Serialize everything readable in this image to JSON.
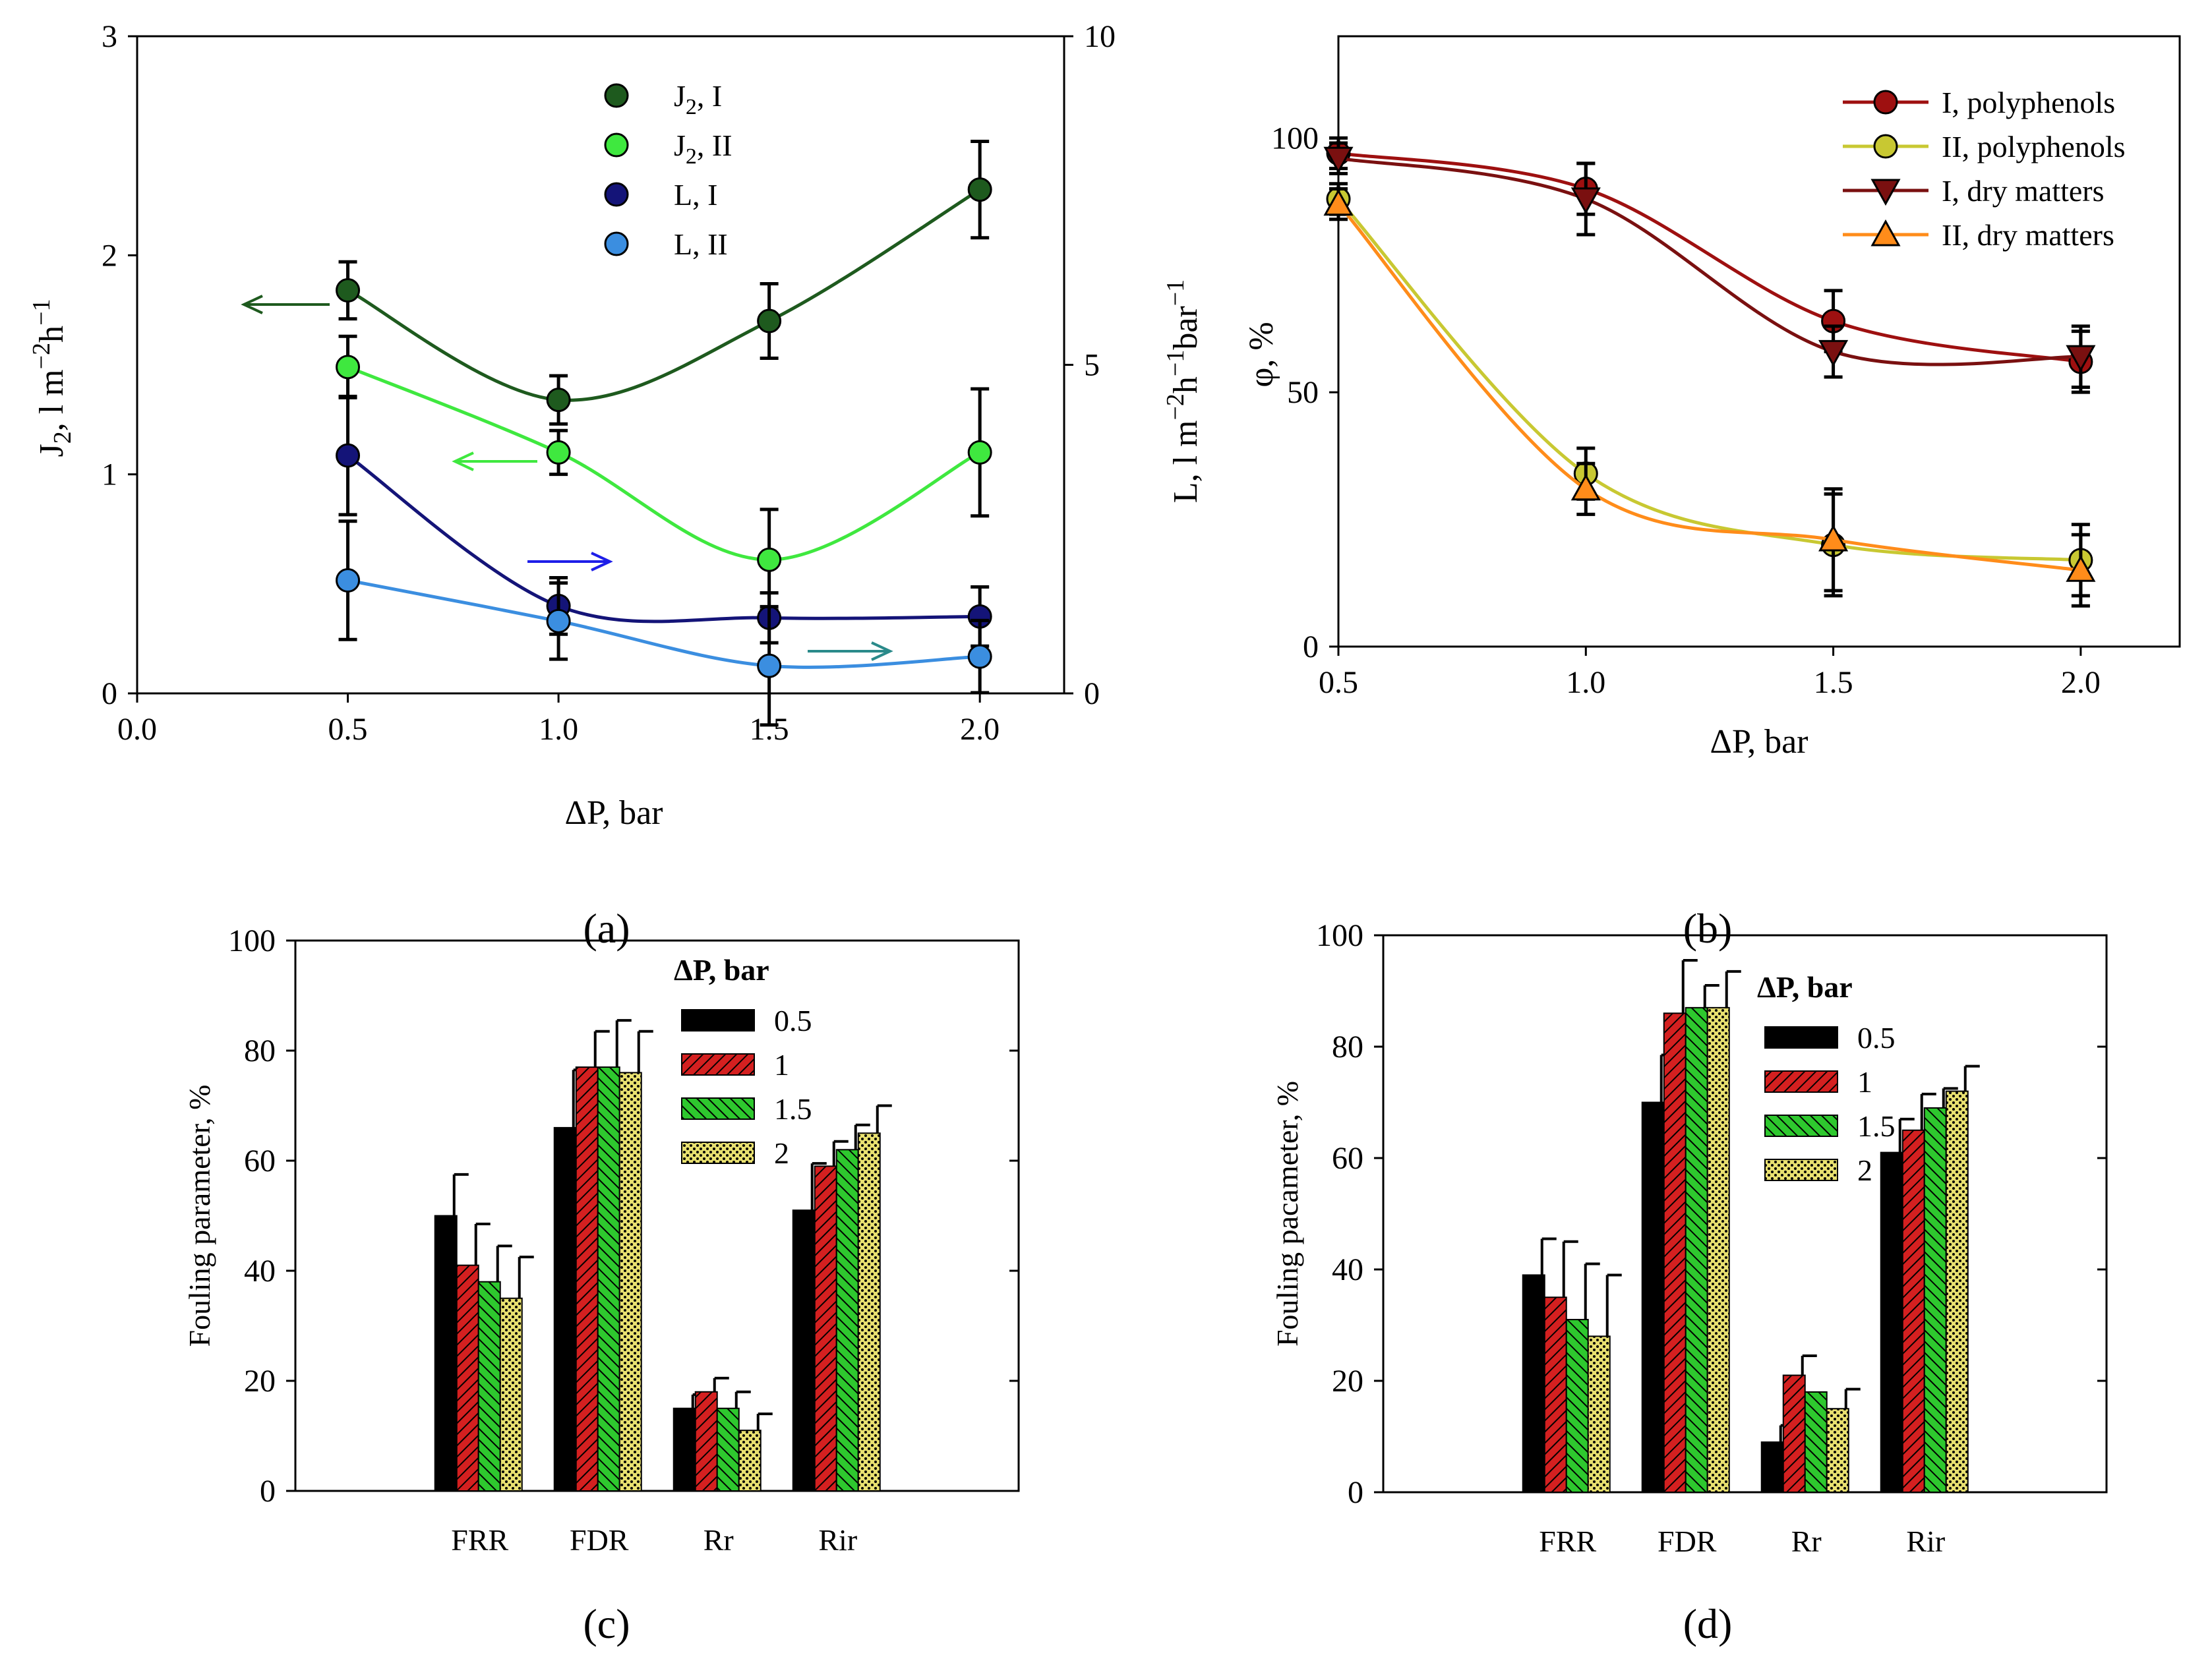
{
  "colors": {
    "J_I": "#1e5a1e",
    "J_II": "#3fe83f",
    "L_I": "#141478",
    "L_II": "#3b8ee0",
    "poly_I": "#9e1010",
    "poly_II": "#c8c832",
    "dry_I": "#7a1010",
    "dry_II": "#ff8c1a",
    "bar_05": "#000000",
    "bar_1": "#d42020",
    "bar_15": "#2ec82e",
    "bar_2": "#e8e070"
  },
  "chart_data": [
    {
      "id": "a",
      "type": "line",
      "caption_letter": "a",
      "xlabel": "ΔP, bar",
      "xlim": [
        0,
        2.2
      ],
      "xticks": [
        "0.0",
        "0.5",
        "1.0",
        "1.5",
        "2.0"
      ],
      "ylabel_left": {
        "base": "J",
        "sub": "2",
        "rest": ", l m",
        "sup1": "−2",
        "mid": "h",
        "sup2": "−1"
      },
      "ylabel_right": {
        "base": "L, l m",
        "sup1": "−2",
        "mid": "h",
        "sup2": "−1",
        "tail": "bar",
        "sup3": "−1"
      },
      "ylim_left": [
        0,
        3
      ],
      "yticks_left": [
        "0",
        "1",
        "2",
        "3"
      ],
      "ylim_right": [
        0,
        10
      ],
      "yticks_right": [
        "0",
        "5",
        "10"
      ],
      "x": [
        0.5,
        1.0,
        1.5,
        2.0
      ],
      "series": [
        {
          "name": "J2, I",
          "label_base": "J",
          "label_sub": "2",
          "label_rest": ", I",
          "axis": "left",
          "values": [
            1.84,
            1.34,
            1.7,
            2.3
          ],
          "err": [
            0.13,
            0.11,
            0.17,
            0.22
          ],
          "color_key": "J_I"
        },
        {
          "name": "J2, II",
          "label_base": "J",
          "label_sub": "2",
          "label_rest": ", II",
          "axis": "left",
          "values": [
            1.49,
            1.1,
            0.61,
            1.1
          ],
          "err": [
            0.14,
            0.1,
            0.23,
            0.29
          ],
          "color_key": "J_II"
        },
        {
          "name": "L, I",
          "label_base": "L, I",
          "label_sub": "",
          "label_rest": "",
          "axis": "right",
          "values": [
            3.62,
            1.33,
            1.15,
            1.17
          ],
          "err": [
            0.9,
            0.43,
            0.38,
            0.45
          ],
          "color_key": "L_I"
        },
        {
          "name": "L, II",
          "label_base": "L, II",
          "label_sub": "",
          "label_rest": "",
          "axis": "right",
          "values": [
            1.72,
            1.1,
            0.42,
            0.56
          ],
          "err": [
            0.9,
            0.58,
            0.9,
            0.55
          ],
          "color_key": "L_II"
        }
      ]
    },
    {
      "id": "b",
      "type": "line",
      "caption_letter": "b",
      "xlabel": "ΔP, bar",
      "ylabel": "φ, %",
      "xlim": [
        0.5,
        2.2
      ],
      "xticks": [
        "0.5",
        "1.0",
        "1.5",
        "2.0"
      ],
      "ylim": [
        0,
        120
      ],
      "yticks": [
        "0",
        "50",
        "100"
      ],
      "x": [
        0.5,
        1.0,
        1.5,
        2.0
      ],
      "series": [
        {
          "name": "I, polyphenols",
          "marker": "circle",
          "values": [
            97,
            90,
            64,
            56
          ],
          "err": [
            3,
            5,
            6,
            6
          ],
          "color_key": "poly_I"
        },
        {
          "name": "II, polyphenols",
          "marker": "circle",
          "values": [
            88,
            34,
            20,
            17
          ],
          "err": [
            3,
            5,
            10,
            7
          ],
          "color_key": "poly_II"
        },
        {
          "name": "I, dry matters",
          "marker": "tri-down",
          "values": [
            96,
            88,
            58,
            57
          ],
          "err": [
            3,
            7,
            5,
            6
          ],
          "color_key": "dry_I"
        },
        {
          "name": "II, dry matters",
          "marker": "tri-up",
          "values": [
            87,
            31,
            21,
            15
          ],
          "err": [
            3,
            5,
            10,
            7
          ],
          "color_key": "dry_II"
        }
      ]
    },
    {
      "id": "c",
      "type": "bar",
      "caption_letter": "c",
      "ylabel": "Fouling parameter, %",
      "ylim": [
        0,
        100
      ],
      "yticks": [
        "0",
        "20",
        "40",
        "60",
        "80",
        "100"
      ],
      "legend_title": "ΔP, bar",
      "categories": [
        "FRR",
        "FDR",
        "Rr",
        "Rir"
      ],
      "series": [
        {
          "name": "0.5",
          "values": [
            50,
            66,
            15,
            51
          ],
          "err": [
            7.5,
            10.5,
            2.5,
            8.5
          ],
          "color_key": "bar_05",
          "pattern": "solid"
        },
        {
          "name": "1",
          "values": [
            41,
            77,
            18,
            59
          ],
          "err": [
            7.5,
            6.5,
            2.5,
            4.5
          ],
          "color_key": "bar_1",
          "pattern": "hatch"
        },
        {
          "name": "1.5",
          "values": [
            38,
            77,
            15,
            62
          ],
          "err": [
            6.5,
            8.5,
            3,
            4.5
          ],
          "color_key": "bar_15",
          "pattern": "hatch"
        },
        {
          "name": "2",
          "values": [
            35,
            76,
            11,
            65
          ],
          "err": [
            7.5,
            7.5,
            3,
            5
          ],
          "color_key": "bar_2",
          "pattern": "dots"
        }
      ]
    },
    {
      "id": "d",
      "type": "bar",
      "caption_letter": "d",
      "ylabel": "Fouling pacameter, %",
      "ylim": [
        0,
        100
      ],
      "yticks": [
        "0",
        "20",
        "40",
        "60",
        "80",
        "100"
      ],
      "legend_title": "ΔP, bar",
      "categories": [
        "FRR",
        "FDR",
        "Rr",
        "Rir"
      ],
      "series": [
        {
          "name": "0.5",
          "values": [
            39,
            70,
            9,
            61
          ],
          "err": [
            6.5,
            8.5,
            3,
            6
          ],
          "color_key": "bar_05",
          "pattern": "solid"
        },
        {
          "name": "1",
          "values": [
            35,
            86,
            21,
            65
          ],
          "err": [
            10,
            9.5,
            3.5,
            6.5
          ],
          "color_key": "bar_1",
          "pattern": "hatch"
        },
        {
          "name": "1.5",
          "values": [
            31,
            87,
            18,
            69
          ],
          "err": [
            10,
            4,
            0,
            3.5
          ],
          "color_key": "bar_15",
          "pattern": "hatch"
        },
        {
          "name": "2",
          "values": [
            28,
            87,
            15,
            72
          ],
          "err": [
            11,
            6.5,
            3.5,
            4.5
          ],
          "color_key": "bar_2",
          "pattern": "dots"
        }
      ]
    }
  ]
}
